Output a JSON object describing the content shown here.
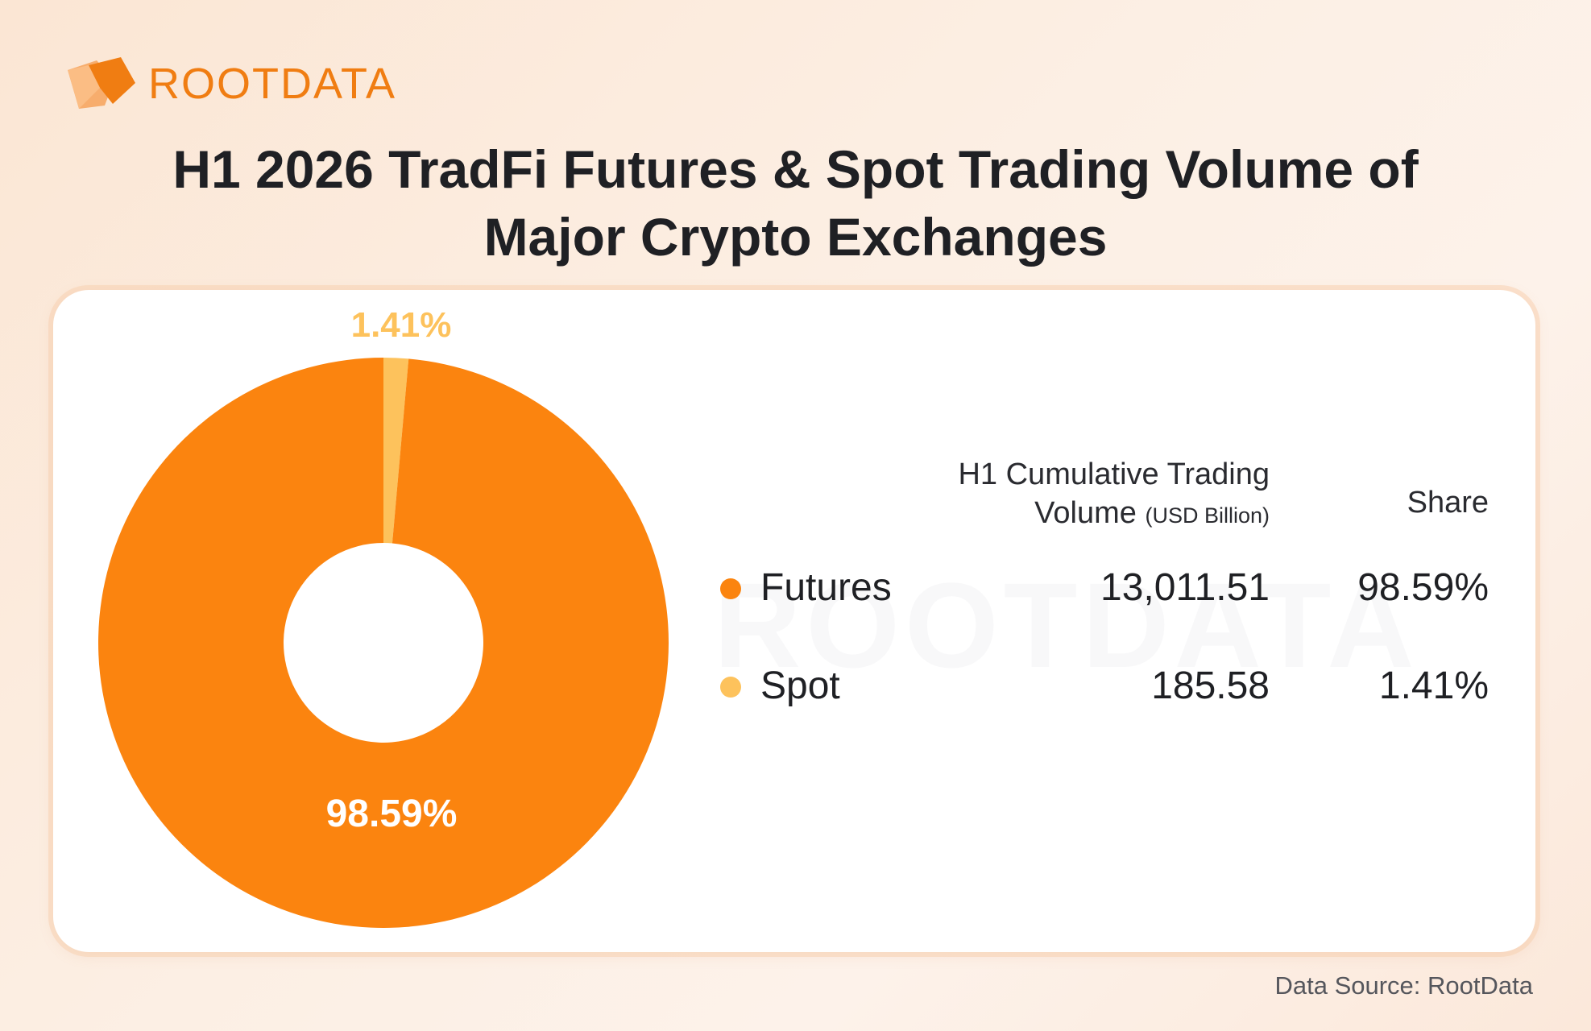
{
  "brand": {
    "name": "ROOTDATA"
  },
  "title": {
    "line1": "H1 2026 TradFi Futures & Spot Trading Volume of",
    "line2": "Major Crypto Exchanges"
  },
  "table": {
    "header_volume_line1": "H1 Cumulative Trading",
    "header_volume_line2": "Volume",
    "header_volume_unit": "(USD Billion)",
    "header_share": "Share",
    "rows": [
      {
        "name": "Futures",
        "volume": "13,011.51",
        "share": "98.59%"
      },
      {
        "name": "Spot",
        "volume": "185.58",
        "share": "1.41%"
      }
    ]
  },
  "source": "Data Source: RootData",
  "colors": {
    "futures": "#fb840f",
    "spot": "#fdc25c",
    "brand": "#f07d12"
  },
  "chart_data": {
    "type": "pie",
    "variant": "donut",
    "title": "H1 2026 TradFi Futures & Spot Trading Volume of Major Crypto Exchanges",
    "slices": [
      {
        "label": "Futures",
        "value": 13011.51,
        "percent": 98.59,
        "percent_label": "98.59%",
        "color": "#fb840f"
      },
      {
        "label": "Spot",
        "value": 185.58,
        "percent": 1.41,
        "percent_label": "1.41%",
        "color": "#fdc25c"
      }
    ],
    "unit": "USD Billion",
    "legend_position": "right"
  }
}
